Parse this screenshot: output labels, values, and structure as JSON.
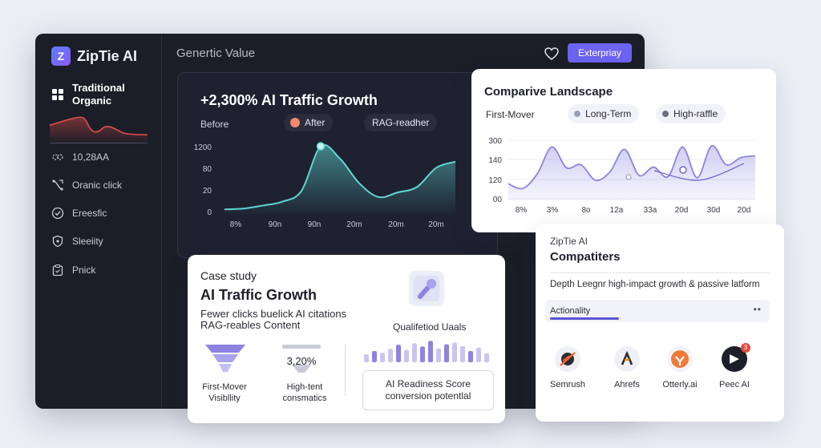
{
  "sidebar": {
    "brand": "ZipTie AI",
    "brand_logo": "Z",
    "active_item": "Traditional Organic",
    "items": [
      {
        "label": "10,28AA",
        "icon": "link-icon"
      },
      {
        "label": "Oranic click",
        "icon": "route-icon"
      },
      {
        "label": "Ereesfic",
        "icon": "check-circle-icon"
      },
      {
        "label": "Sleeiity",
        "icon": "shield-icon"
      },
      {
        "label": "Pnick",
        "icon": "clipboard-icon"
      }
    ]
  },
  "topbar": {
    "title": "Genertic Value",
    "button": "Exterpriay"
  },
  "growth": {
    "title": "+2,300% AI Traffic Growth",
    "legend_before": "Before",
    "legend_after": "After",
    "legend_rag": "RAG-readher"
  },
  "landscape": {
    "title": "Comparive Landscape",
    "first_mover": "First-Mover",
    "pill1": "Long-Term",
    "pill2": "High-raffle"
  },
  "competitors": {
    "small": "ZipTie AI",
    "title": "Compatiters",
    "desc": "Depth Leegnr high-impact growth & passive latform",
    "actionality": "Actionality",
    "dots": "••",
    "logos": [
      {
        "name": "Semrush",
        "icon": "semrush-logo-icon"
      },
      {
        "name": "Ahrefs",
        "icon": "ahrefs-logo-icon"
      },
      {
        "name": "Otterly.ai",
        "icon": "otterly-logo-icon"
      },
      {
        "name": "Peec AI",
        "icon": "peec-logo-icon",
        "badge": "3"
      }
    ]
  },
  "casestudy": {
    "small": "Case study",
    "title": "AI Traffic Growth",
    "desc_line1": "Fewer clicks buelick AI citations",
    "desc_line2": "RAG-reables Content",
    "qualified": "Qualifetiod Uaals",
    "funnel_label_1": "First-Mover",
    "funnel_label_2": "Visibllity",
    "pct_value": "3,20%",
    "pct_label_1": "High-tent",
    "pct_label_2": "consmatics",
    "score_line1": "AI Readiness Score",
    "score_line2": "conversion potentlal"
  },
  "colors": {
    "accent": "#6c63f0",
    "teal": "#5fd6d2",
    "mini_red": "#e0504a",
    "lavender": "#8c84e0"
  },
  "chart_data": [
    {
      "type": "area",
      "title": "+2,300% AI Traffic Growth",
      "y_ticks": [
        "1200",
        "80",
        "20",
        "0"
      ],
      "x_ticks": [
        "8%",
        "90n",
        "90n",
        "20m",
        "20m",
        "20m"
      ],
      "series": [
        {
          "name": "After",
          "values": [
            0.06,
            0.07,
            0.11,
            0.16,
            0.3,
            0.88,
            0.72,
            0.4,
            0.22,
            0.28,
            0.35,
            0.6,
            0.68
          ]
        }
      ]
    },
    {
      "type": "area",
      "title": "Comparive Landscape",
      "y_ticks": [
        "300",
        "140",
        "120",
        "00"
      ],
      "x_ticks": [
        "8%",
        "3%",
        "8o",
        "12a",
        "33a",
        "20d",
        "30d",
        "20d"
      ],
      "series": [
        {
          "values": [
            0.28,
            0.2,
            0.45,
            0.9,
            0.55,
            0.6,
            0.34,
            0.48,
            0.86,
            0.42,
            0.56,
            0.4,
            0.9,
            0.38,
            0.92,
            0.6,
            0.72,
            0.75
          ]
        },
        {
          "values": [
            0.5,
            0.34,
            0.62
          ]
        }
      ]
    },
    {
      "type": "bar",
      "title": "Qualifetiod Uaals",
      "values": [
        0.35,
        0.5,
        0.42,
        0.6,
        0.78,
        0.55,
        0.85,
        0.7,
        0.95,
        0.62,
        0.8,
        0.88,
        0.72,
        0.5,
        0.65,
        0.4
      ]
    }
  ]
}
